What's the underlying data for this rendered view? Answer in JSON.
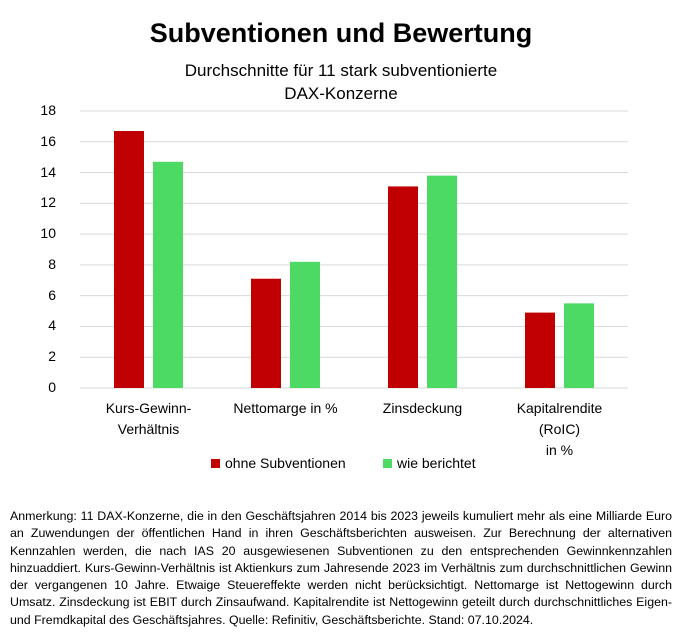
{
  "chart_data": {
    "type": "bar",
    "title": "Subventionen und Bewertung",
    "subtitle": "Durchschnitte für 11 stark subventionierte\nDAX-Konzerne",
    "categories": [
      "Kurs-Gewinn-\nVerhältnis",
      "Nettomarge in %",
      "Zinsdeckung",
      "Kapitalrendite (RoIC)\nin %"
    ],
    "series": [
      {
        "name": "ohne Subventionen",
        "color": "#c00000",
        "values": [
          16.7,
          7.1,
          13.1,
          4.9
        ]
      },
      {
        "name": "wie berichtet",
        "color": "#4cd964",
        "values": [
          14.7,
          8.2,
          13.8,
          5.5
        ]
      }
    ],
    "ylim": [
      0,
      18
    ],
    "yticks": [
      0,
      2,
      4,
      6,
      8,
      10,
      12,
      14,
      16,
      18
    ],
    "grid": true,
    "legend": "bottom",
    "note": "Anmerkung: 11 DAX-Konzerne, die in den Geschäftsjahren 2014 bis 2023 jeweils kumuliert mehr als eine Milliarde Euro an Zuwendungen der öffentlichen Hand in ihren Geschäftsberichten ausweisen. Zur Berechnung der alternativen Kennzahlen werden, die nach IAS 20 ausgewiesenen Subventionen zu den entsprechenden Gewinnkennzahlen hinzuaddiert. Kurs-Gewinn-Verhältnis ist Aktienkurs zum Jahresende 2023 im Verhältnis zum durchschnittlichen Gewinn der vergangenen 10 Jahre. Etwaige Steuereffekte werden nicht berücksichtigt. Nettomarge ist Nettogewinn durch Umsatz. Zinsdeckung ist EBIT durch Zinsaufwand. Kapitalrendite ist Nettogewinn geteilt durch durchschnittliches Eigen- und Fremdkapital des Geschäftsjahres. Quelle: Refinitiv, Geschäftsberichte. Stand: 07.10.2024."
  }
}
